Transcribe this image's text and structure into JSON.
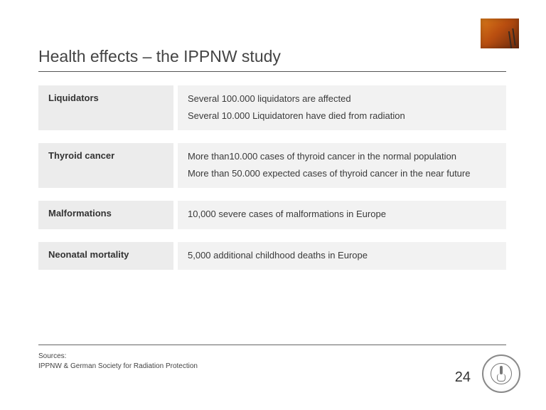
{
  "title": "Health effects – the IPPNW study",
  "page_number": "24",
  "sources_label": "Sources:",
  "sources_line": "IPPNW & German Society for Radiation Protection",
  "colors": {
    "label_bg": "#ececec",
    "desc_bg": "#f2f2f2",
    "text": "#3a3a3a",
    "rule": "#555555"
  },
  "rows": [
    {
      "label": "Liquidators",
      "lines": [
        "Several 100.000 liquidators are affected",
        "Several 10.000 Liquidatoren have died from radiation"
      ]
    },
    {
      "label": "Thyroid cancer",
      "lines": [
        "More than10.000 cases of thyroid cancer in the normal population",
        "More than 50.000 expected cases of thyroid cancer in the near future"
      ]
    },
    {
      "label": "Malformations",
      "lines": [
        "10,000 severe cases of malformations in Europe"
      ]
    },
    {
      "label": "Neonatal mortality",
      "lines": [
        "5,000 additional childhood deaths in Europe"
      ]
    }
  ]
}
